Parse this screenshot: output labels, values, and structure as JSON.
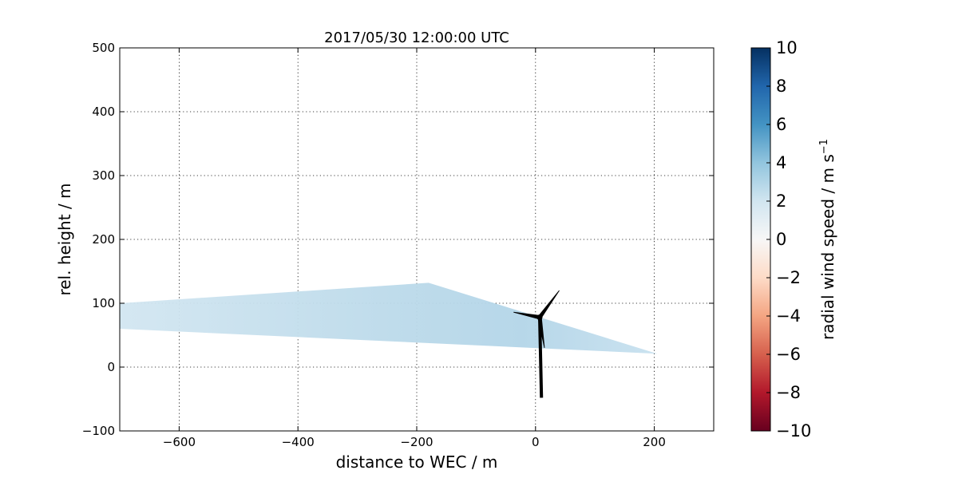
{
  "chart_data": {
    "type": "heatmap",
    "title": "2017/05/30 12:00:00 UTC",
    "xlabel": "distance to WEC / m",
    "ylabel": "rel. height / m",
    "xlim": [
      -700,
      300
    ],
    "ylim": [
      -100,
      500
    ],
    "xticks": [
      -600,
      -400,
      -200,
      0,
      200
    ],
    "yticks": [
      -100,
      0,
      100,
      200,
      300,
      400,
      500
    ],
    "grid": true,
    "scan": {
      "description": "radial wind speed field along lidar scan wedge",
      "polygon": [
        [
          -700,
          100
        ],
        [
          -180,
          132
        ],
        [
          205,
          21
        ],
        [
          -700,
          60
        ]
      ],
      "typical_value": 3.5,
      "range": [
        2.5,
        5.0
      ]
    },
    "turbine": {
      "tower_base": [
        10,
        -48
      ],
      "hub": [
        7,
        78
      ],
      "blade_tips": [
        [
          40,
          120
        ],
        [
          -37,
          86
        ],
        [
          15,
          30
        ]
      ]
    },
    "colorbar": {
      "label": "radial wind speed / m s",
      "label_superscript": "−1",
      "colormap": "RdBu",
      "vmin": -10,
      "vmax": 10,
      "ticks": [
        -10,
        -8,
        -6,
        -4,
        -2,
        0,
        2,
        4,
        6,
        8,
        10
      ],
      "tick_labels": [
        "−10",
        "−8",
        "−6",
        "−4",
        "−2",
        "0",
        "2",
        "4",
        "6",
        "8",
        "10"
      ],
      "colors": [
        "#67001f",
        "#b2182b",
        "#d6604d",
        "#f4a582",
        "#fddbc7",
        "#f7f7f7",
        "#d1e5f0",
        "#92c5de",
        "#4393c3",
        "#2166ac",
        "#053061"
      ]
    }
  }
}
